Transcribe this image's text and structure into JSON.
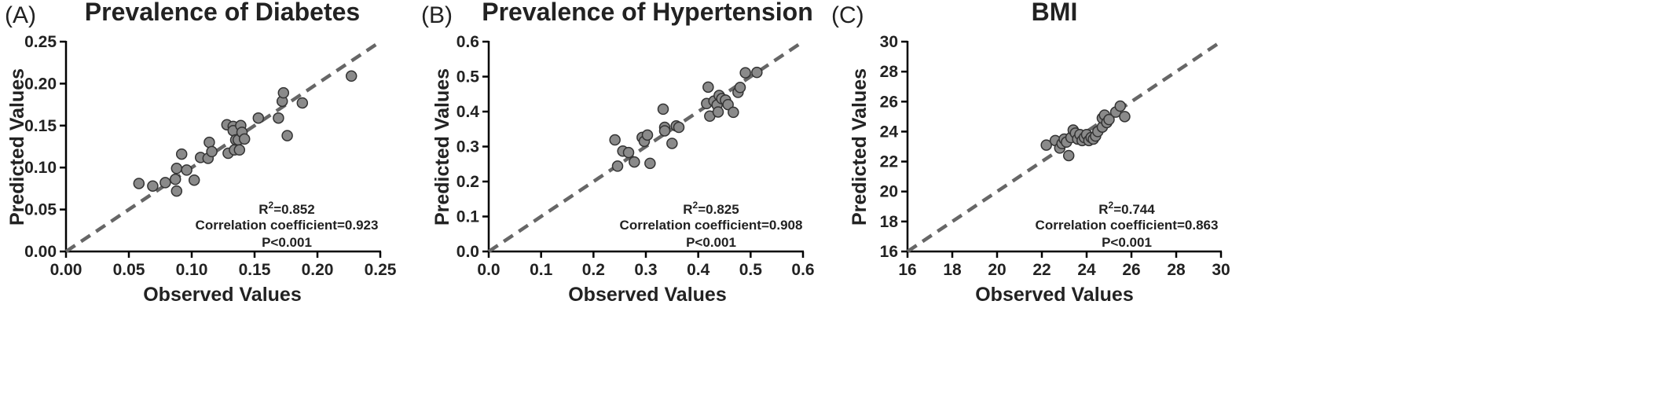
{
  "colors": {
    "points": "#8a8a8a",
    "point_outline": "#333333",
    "reference_line": "#666666",
    "axes": "#000000"
  },
  "chart_data": [
    {
      "type": "scatter",
      "panel": "(A)",
      "title": "Prevalence of Diabetes",
      "xlabel": "Observed Values",
      "ylabel": "Predicted Values",
      "xlim": [
        0,
        0.25
      ],
      "ylim": [
        0,
        0.25
      ],
      "xticks": [
        "0.00",
        "0.05",
        "0.10",
        "0.15",
        "0.20",
        "0.25"
      ],
      "yticks": [
        "0.00",
        "0.05",
        "0.10",
        "0.15",
        "0.20",
        "0.25"
      ],
      "reference_line": "y = x (dashed)",
      "stats": {
        "r2": "R2=0.852",
        "corr": "Correlation coefficient=0.923",
        "p": "P<0.001"
      },
      "points": [
        [
          0.058,
          0.081
        ],
        [
          0.069,
          0.078
        ],
        [
          0.079,
          0.082
        ],
        [
          0.087,
          0.086
        ],
        [
          0.088,
          0.099
        ],
        [
          0.088,
          0.072
        ],
        [
          0.092,
          0.116
        ],
        [
          0.096,
          0.097
        ],
        [
          0.102,
          0.085
        ],
        [
          0.107,
          0.112
        ],
        [
          0.113,
          0.111
        ],
        [
          0.114,
          0.13
        ],
        [
          0.116,
          0.119
        ],
        [
          0.128,
          0.151
        ],
        [
          0.129,
          0.117
        ],
        [
          0.133,
          0.149
        ],
        [
          0.133,
          0.144
        ],
        [
          0.134,
          0.121
        ],
        [
          0.135,
          0.133
        ],
        [
          0.137,
          0.133
        ],
        [
          0.138,
          0.121
        ],
        [
          0.139,
          0.15
        ],
        [
          0.14,
          0.142
        ],
        [
          0.142,
          0.134
        ],
        [
          0.153,
          0.159
        ],
        [
          0.169,
          0.159
        ],
        [
          0.172,
          0.179
        ],
        [
          0.173,
          0.189
        ],
        [
          0.176,
          0.138
        ],
        [
          0.188,
          0.177
        ],
        [
          0.227,
          0.209
        ]
      ]
    },
    {
      "type": "scatter",
      "panel": "(B)",
      "title": "Prevalence of Hypertension",
      "xlabel": "Observed Values",
      "ylabel": "Predicted Values",
      "xlim": [
        0,
        0.6
      ],
      "ylim": [
        0,
        0.6
      ],
      "xticks": [
        "0.0",
        "0.1",
        "0.2",
        "0.3",
        "0.4",
        "0.5",
        "0.6"
      ],
      "yticks": [
        "0.0",
        "0.1",
        "0.2",
        "0.3",
        "0.4",
        "0.5",
        "0.6"
      ],
      "reference_line": "y = x (dashed)",
      "stats": {
        "r2": "R2=0.825",
        "corr": "Correlation coefficient=0.908",
        "p": "P<0.001"
      },
      "points": [
        [
          0.241,
          0.319
        ],
        [
          0.246,
          0.244
        ],
        [
          0.256,
          0.287
        ],
        [
          0.267,
          0.283
        ],
        [
          0.278,
          0.256
        ],
        [
          0.293,
          0.326
        ],
        [
          0.297,
          0.315
        ],
        [
          0.303,
          0.333
        ],
        [
          0.308,
          0.252
        ],
        [
          0.333,
          0.407
        ],
        [
          0.336,
          0.355
        ],
        [
          0.336,
          0.345
        ],
        [
          0.35,
          0.309
        ],
        [
          0.358,
          0.359
        ],
        [
          0.363,
          0.355
        ],
        [
          0.416,
          0.423
        ],
        [
          0.419,
          0.47
        ],
        [
          0.422,
          0.387
        ],
        [
          0.43,
          0.43
        ],
        [
          0.436,
          0.419
        ],
        [
          0.438,
          0.399
        ],
        [
          0.44,
          0.446
        ],
        [
          0.445,
          0.437
        ],
        [
          0.452,
          0.433
        ],
        [
          0.457,
          0.42
        ],
        [
          0.467,
          0.398
        ],
        [
          0.476,
          0.455
        ],
        [
          0.48,
          0.469
        ],
        [
          0.49,
          0.511
        ],
        [
          0.512,
          0.512
        ]
      ]
    },
    {
      "type": "scatter",
      "panel": "(C)",
      "title": "BMI",
      "xlabel": "Observed Values",
      "ylabel": "Predicted Values",
      "xlim": [
        16,
        30
      ],
      "ylim": [
        16,
        30
      ],
      "xticks": [
        "16",
        "18",
        "20",
        "22",
        "24",
        "26",
        "28",
        "30"
      ],
      "yticks": [
        "16",
        "18",
        "20",
        "22",
        "24",
        "26",
        "28",
        "30"
      ],
      "reference_line": "y = x (dashed)",
      "stats": {
        "r2": "R2=0.744",
        "corr": "Correlation coefficient=0.863",
        "p": "P<0.001"
      },
      "points": [
        [
          22.2,
          23.1
        ],
        [
          22.6,
          23.4
        ],
        [
          22.8,
          22.9
        ],
        [
          22.9,
          23.2
        ],
        [
          23.0,
          23.5
        ],
        [
          23.1,
          23.3
        ],
        [
          23.2,
          22.4
        ],
        [
          23.3,
          23.6
        ],
        [
          23.4,
          24.1
        ],
        [
          23.5,
          23.9
        ],
        [
          23.6,
          23.5
        ],
        [
          23.7,
          23.8
        ],
        [
          23.8,
          23.4
        ],
        [
          23.9,
          23.6
        ],
        [
          24.0,
          23.8
        ],
        [
          24.1,
          23.4
        ],
        [
          24.2,
          23.6
        ],
        [
          24.3,
          23.5
        ],
        [
          24.4,
          23.7
        ],
        [
          24.5,
          24.0
        ],
        [
          24.7,
          24.3
        ],
        [
          24.7,
          24.9
        ],
        [
          24.8,
          25.1
        ],
        [
          24.9,
          24.6
        ],
        [
          25.0,
          24.8
        ],
        [
          25.3,
          25.3
        ],
        [
          25.5,
          25.7
        ],
        [
          25.7,
          25.0
        ]
      ]
    }
  ]
}
